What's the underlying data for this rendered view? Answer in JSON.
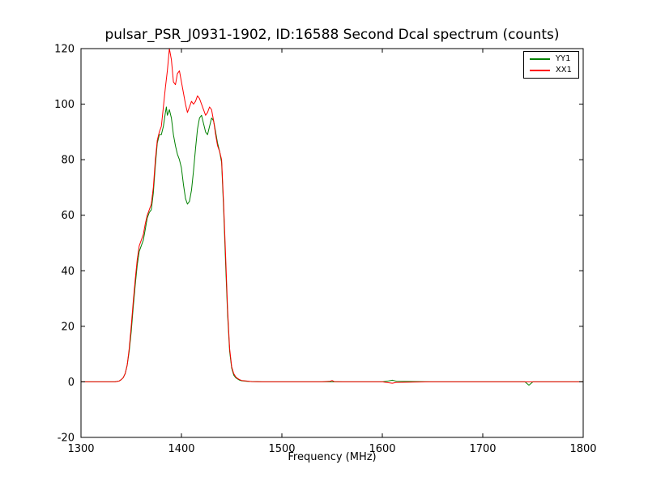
{
  "chart_data": {
    "type": "line",
    "title": "pulsar_PSR_J0931-1902, ID:16588 Second Dcal spectrum (counts)",
    "xlabel": "Frequency (MHz)",
    "ylabel": "",
    "xlim": [
      1300,
      1800
    ],
    "ylim": [
      -20,
      120
    ],
    "xticks": [
      1300,
      1400,
      1500,
      1600,
      1700,
      1800
    ],
    "yticks": [
      -20,
      0,
      20,
      40,
      60,
      80,
      100,
      120
    ],
    "grid": false,
    "legend_position": "upper right",
    "x": [
      1300,
      1310,
      1320,
      1330,
      1334,
      1338,
      1340,
      1342,
      1344,
      1346,
      1348,
      1350,
      1352,
      1354,
      1356,
      1358,
      1360,
      1362,
      1364,
      1366,
      1368,
      1370,
      1372,
      1374,
      1376,
      1378,
      1380,
      1382,
      1384,
      1385,
      1386,
      1388,
      1390,
      1392,
      1394,
      1396,
      1398,
      1400,
      1402,
      1404,
      1406,
      1408,
      1410,
      1412,
      1414,
      1416,
      1418,
      1420,
      1422,
      1424,
      1426,
      1428,
      1430,
      1432,
      1434,
      1436,
      1438,
      1440,
      1442,
      1444,
      1446,
      1448,
      1450,
      1452,
      1454,
      1456,
      1458,
      1460,
      1465,
      1470,
      1480,
      1500,
      1540,
      1548,
      1550,
      1552,
      1560,
      1600,
      1606,
      1610,
      1614,
      1650,
      1700,
      1742,
      1746,
      1750,
      1800
    ],
    "series": [
      {
        "name": "YY1",
        "color": "#008000",
        "values": [
          0,
          0,
          0,
          0,
          0,
          0.3,
          0.8,
          1.5,
          3,
          6,
          11,
          18,
          27,
          35,
          42,
          47,
          49,
          51,
          55,
          59,
          61,
          62,
          68,
          78,
          86,
          89,
          89,
          92,
          97,
          99,
          96,
          98,
          95,
          89,
          85,
          82,
          80,
          77,
          71,
          66,
          64,
          65,
          69,
          76,
          84,
          91,
          95,
          96,
          93,
          90,
          89,
          92,
          95,
          94,
          90,
          86,
          83,
          79,
          62,
          42,
          24,
          11,
          5,
          2.5,
          1.5,
          1,
          0.6,
          0.4,
          0.2,
          0.1,
          0,
          0,
          0,
          0,
          0,
          0,
          0,
          0,
          0.3,
          0.6,
          0.2,
          0,
          0,
          0,
          -1.2,
          0,
          0
        ]
      },
      {
        "name": "XX1",
        "color": "#ff0000",
        "values": [
          0,
          0,
          0,
          0,
          0,
          0.3,
          0.8,
          1.5,
          3,
          6,
          12,
          20,
          29,
          37,
          44,
          49,
          51,
          53,
          57,
          60,
          62,
          64,
          70,
          80,
          87,
          90,
          92,
          99,
          106,
          109,
          112,
          120,
          116,
          108,
          107,
          111,
          112,
          108,
          104,
          100,
          97,
          99,
          101,
          100,
          101,
          103,
          102,
          100,
          98,
          96,
          97,
          99,
          98,
          94,
          89,
          85,
          83,
          80,
          64,
          45,
          26,
          12,
          5.5,
          3,
          1.8,
          1.2,
          0.8,
          0.5,
          0.3,
          0.1,
          0,
          0,
          0,
          0.2,
          0.5,
          0.1,
          0,
          0,
          -0.3,
          -0.5,
          -0.2,
          0,
          0,
          0,
          0,
          0,
          0
        ]
      }
    ]
  }
}
